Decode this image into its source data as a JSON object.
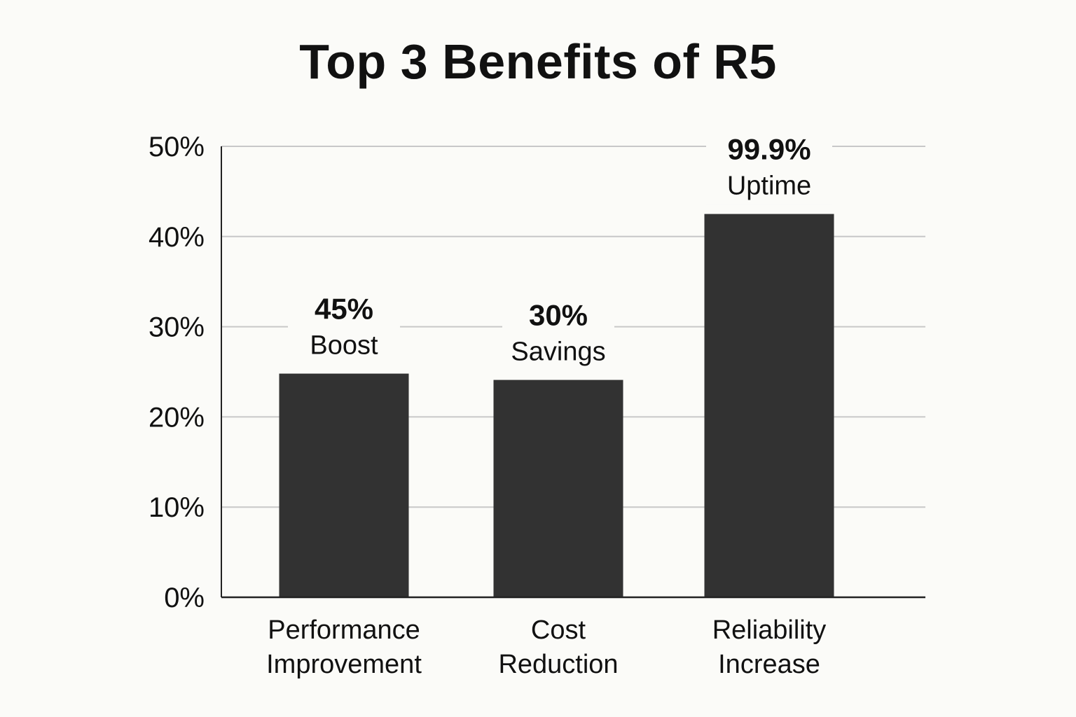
{
  "chart_data": {
    "type": "bar",
    "title": "Top 3 Benefits of R5",
    "xlabel": "",
    "ylabel": "",
    "ylim": [
      0,
      50
    ],
    "y_ticks": [
      "0%",
      "10%",
      "20%",
      "30%",
      "40%",
      "50%"
    ],
    "y_tick_values": [
      0,
      10,
      20,
      30,
      40,
      50
    ],
    "grid": true,
    "categories": [
      [
        "Performance",
        "Improvement"
      ],
      [
        "Cost",
        "Reduction"
      ],
      [
        "Reliability",
        "Increase"
      ]
    ],
    "values": [
      24.8,
      24.1,
      42.5
    ],
    "annotations": [
      {
        "value": "45%",
        "text": "Boost"
      },
      {
        "value": "30%",
        "text": "Savings"
      },
      {
        "value": "99.9%",
        "text": "Uptime"
      }
    ],
    "colors": {
      "bar": "#323232",
      "grid": "#c8c8c8",
      "axis": "#222222",
      "background": "#fbfbf8"
    }
  }
}
